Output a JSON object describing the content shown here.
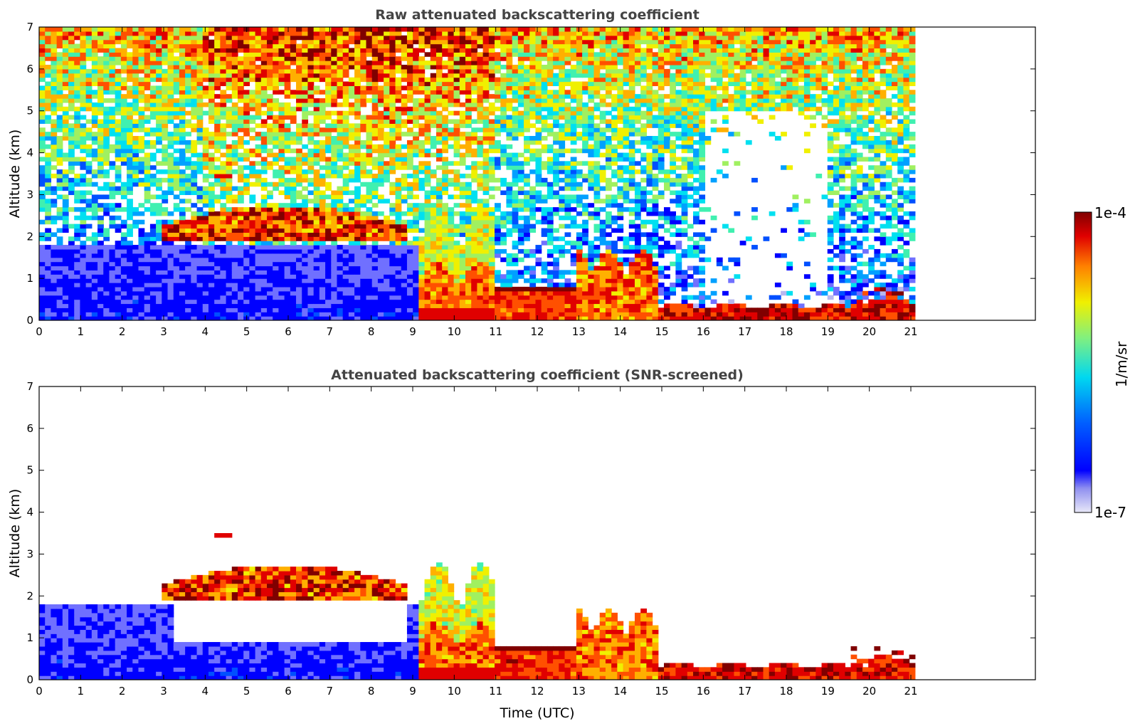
{
  "chart_data": [
    {
      "type": "heatmap",
      "title": "Raw attenuated backscattering coefficient",
      "xlabel": "",
      "ylabel": "Altitude (km)",
      "xlim": [
        0,
        24
      ],
      "ylim": [
        0,
        7
      ],
      "x_ticks": [
        "0",
        "1",
        "2",
        "3",
        "4",
        "5",
        "6",
        "7",
        "8",
        "9",
        "10",
        "11",
        "12",
        "13",
        "14",
        "15",
        "16",
        "17",
        "18",
        "19",
        "20",
        "21"
      ],
      "y_ticks": [
        "0",
        "1",
        "2",
        "3",
        "4",
        "5",
        "6",
        "7"
      ],
      "data_end_time": 21.1,
      "features": [
        {
          "name": "boundary-layer",
          "x": [
            0,
            9
          ],
          "y": [
            0,
            1.8
          ],
          "level": 0.2
        },
        {
          "name": "elevated-aerosol-layer",
          "x": [
            2.9,
            8.9
          ],
          "y": [
            1.9,
            2.7
          ],
          "level": 0.9
        },
        {
          "name": "small-layer",
          "x": [
            4.2,
            4.6
          ],
          "y": [
            3.35,
            3.55
          ],
          "level": 0.9
        },
        {
          "name": "cloud-tower",
          "x": [
            9.3,
            11.0
          ],
          "y": [
            0,
            2.9
          ],
          "level": 0.75
        },
        {
          "name": "cloud-top-band",
          "x": [
            11.0,
            13.0
          ],
          "y": [
            0.7,
            0.85
          ],
          "level": 0.95
        },
        {
          "name": "low-cloud",
          "x": [
            13.0,
            14.9
          ],
          "y": [
            0,
            1.3
          ],
          "level": 0.8
        },
        {
          "name": "surface-layer",
          "x": [
            14.9,
            21.1
          ],
          "y": [
            0,
            0.45
          ],
          "level": 0.85
        }
      ]
    },
    {
      "type": "heatmap",
      "title": "Attenuated backscattering coefficient (SNR-screened)",
      "xlabel": "Time (UTC)",
      "ylabel": "Altitude (km)",
      "xlim": [
        0,
        24
      ],
      "ylim": [
        0,
        7
      ],
      "x_ticks": [
        "0",
        "1",
        "2",
        "3",
        "4",
        "5",
        "6",
        "7",
        "8",
        "9",
        "10",
        "11",
        "12",
        "13",
        "14",
        "15",
        "16",
        "17",
        "18",
        "19",
        "20",
        "21"
      ],
      "y_ticks": [
        "0",
        "1",
        "2",
        "3",
        "4",
        "5",
        "6",
        "7"
      ],
      "data_end_time": 21.1
    }
  ],
  "colorbar": {
    "label": "1/m/sr",
    "max_label": "1e-4",
    "min_label": "1e-7",
    "colors": [
      "#e8e8f8",
      "#b8b8f0",
      "#7070ff",
      "#0000ff",
      "#0050ff",
      "#00a0ff",
      "#00e0f0",
      "#40f0b0",
      "#a0f060",
      "#f0f000",
      "#ffb000",
      "#ff5000",
      "#e00000",
      "#800000"
    ]
  }
}
